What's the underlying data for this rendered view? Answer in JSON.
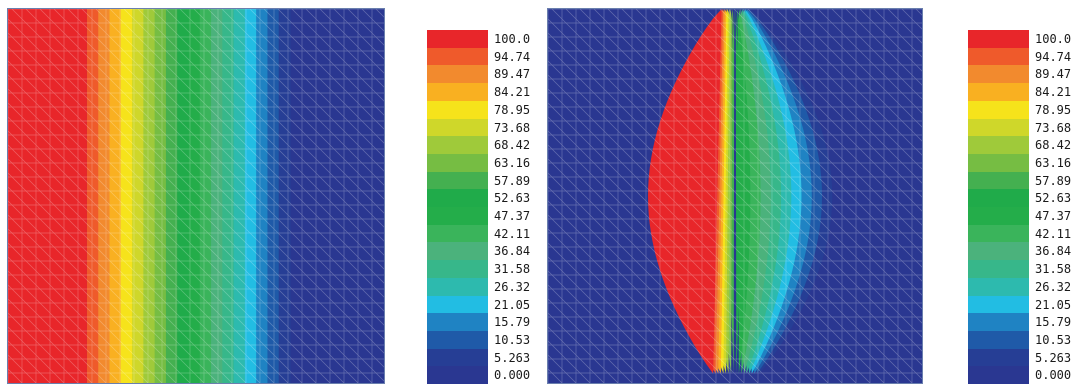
{
  "chart_data": [
    {
      "type": "heatmap",
      "name": "uniform-field",
      "field": "vertical-bands",
      "colorbar_levels": [
        "100.0",
        "94.74",
        "89.47",
        "84.21",
        "78.95",
        "73.68",
        "68.42",
        "63.16",
        "57.89",
        "52.63",
        "47.37",
        "42.11",
        "36.84",
        "31.58",
        "26.32",
        "21.05",
        "15.79",
        "10.53",
        "5.263",
        "0.000"
      ],
      "colorbar_colors": [
        "#e8262a",
        "#ef5a2b",
        "#f28a2e",
        "#f9b021",
        "#f6e31b",
        "#cfd72a",
        "#9fca3a",
        "#76bd43",
        "#44b050",
        "#20ab4a",
        "#24ad4a",
        "#3ab45b",
        "#4bb27c",
        "#37b78a",
        "#2dbaae",
        "#22bde3",
        "#1f83c3",
        "#1f5aa8",
        "#263e95",
        "#2a3791"
      ],
      "gradient_range": [
        0.21,
        0.75
      ]
    },
    {
      "type": "heatmap",
      "name": "bulging-field",
      "field": "bulging-bands",
      "colorbar_levels": [
        "100.0",
        "94.74",
        "89.47",
        "84.21",
        "78.95",
        "73.68",
        "68.42",
        "63.16",
        "57.89",
        "52.63",
        "47.37",
        "42.11",
        "36.84",
        "31.58",
        "26.32",
        "21.05",
        "15.79",
        "10.53",
        "5.263",
        "0.000"
      ],
      "colorbar_colors": [
        "#e8262a",
        "#ef5a2b",
        "#f28a2e",
        "#f9b021",
        "#f6e31b",
        "#cfd72a",
        "#9fca3a",
        "#76bd43",
        "#44b050",
        "#20ab4a",
        "#24ad4a",
        "#3ab45b",
        "#4bb27c",
        "#37b78a",
        "#2dbaae",
        "#22bde3",
        "#1f83c3",
        "#1f5aa8",
        "#263e95",
        "#2a3791"
      ],
      "gradient_range": [
        0.46,
        0.54
      ],
      "bulge": 0.22
    }
  ],
  "colors": {
    "plot_border": "#6a7fae",
    "mesh_line": "#ffffff"
  }
}
